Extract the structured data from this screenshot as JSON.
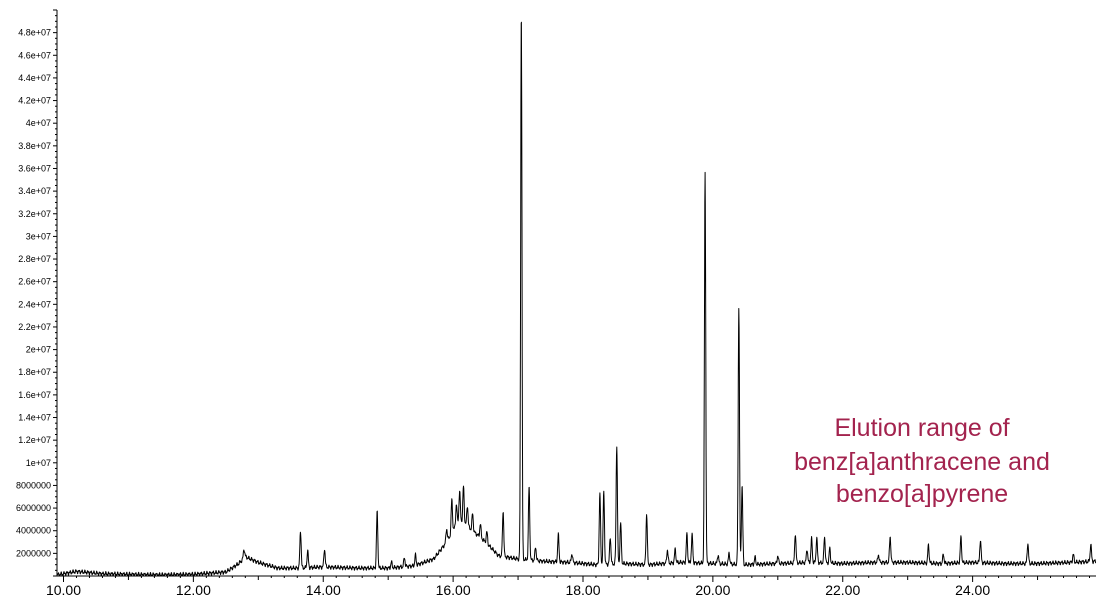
{
  "chart_data": {
    "type": "line",
    "title": "",
    "xlabel": "",
    "ylabel": "",
    "xlim": [
      9.9,
      25.9
    ],
    "ylim": [
      0,
      50000000
    ],
    "grid": false,
    "legend": "none",
    "x_ticks": [
      "10.00",
      "12.00",
      "14.00",
      "16.00",
      "18.00",
      "20.00",
      "22.00",
      "24.00"
    ],
    "y_ticks": [
      "2000000",
      "4000000",
      "6000000",
      "8000000",
      "1e+07",
      "1.2e+07",
      "1.4e+07",
      "1.6e+07",
      "1.8e+07",
      "2e+07",
      "2.2e+07",
      "2.4e+07",
      "2.6e+07",
      "2.8e+07",
      "3e+07",
      "3.2e+07",
      "3.4e+07",
      "3.6e+07",
      "3.8e+07",
      "4e+07",
      "4.2e+07",
      "4.4e+07",
      "4.6e+07",
      "4.8e+07"
    ],
    "line_color": "#000000",
    "annotation": {
      "lines": [
        "Elution range of",
        "benz[a]anthracene and",
        "benzo[a]pyrene"
      ],
      "color": "#a3234e"
    },
    "baseline_points": [
      [
        9.9,
        100000
      ],
      [
        10.2,
        400000
      ],
      [
        10.6,
        200000
      ],
      [
        11.0,
        150000
      ],
      [
        11.5,
        100000
      ],
      [
        12.0,
        150000
      ],
      [
        12.5,
        350000
      ],
      [
        12.7,
        1100000
      ],
      [
        12.8,
        1700000
      ],
      [
        13.0,
        1200000
      ],
      [
        13.3,
        700000
      ],
      [
        13.6,
        700000
      ],
      [
        14.0,
        800000
      ],
      [
        14.5,
        700000
      ],
      [
        15.0,
        700000
      ],
      [
        15.4,
        900000
      ],
      [
        15.7,
        1500000
      ],
      [
        15.9,
        3000000
      ],
      [
        16.1,
        5000000
      ],
      [
        16.3,
        4000000
      ],
      [
        16.5,
        3000000
      ],
      [
        16.7,
        1800000
      ],
      [
        17.0,
        1500000
      ],
      [
        17.4,
        1300000
      ],
      [
        17.8,
        1200000
      ],
      [
        18.2,
        1000000
      ],
      [
        18.6,
        1100000
      ],
      [
        19.0,
        1000000
      ],
      [
        19.5,
        1200000
      ],
      [
        20.0,
        1100000
      ],
      [
        20.5,
        1000000
      ],
      [
        21.0,
        1100000
      ],
      [
        21.5,
        1200000
      ],
      [
        22.0,
        1100000
      ],
      [
        22.5,
        1200000
      ],
      [
        23.0,
        1200000
      ],
      [
        23.5,
        1100000
      ],
      [
        24.0,
        1200000
      ],
      [
        24.5,
        1100000
      ],
      [
        25.0,
        1100000
      ],
      [
        25.5,
        1200000
      ],
      [
        25.9,
        1300000
      ]
    ],
    "peaks": [
      [
        12.78,
        800000
      ],
      [
        13.65,
        3300000
      ],
      [
        13.76,
        1500000
      ],
      [
        14.02,
        1600000
      ],
      [
        14.83,
        5000000
      ],
      [
        15.05,
        500000
      ],
      [
        15.25,
        800000
      ],
      [
        15.42,
        900000
      ],
      [
        15.9,
        1200000
      ],
      [
        15.98,
        3000000
      ],
      [
        16.05,
        1800000
      ],
      [
        16.1,
        2500000
      ],
      [
        16.16,
        3200000
      ],
      [
        16.22,
        1800000
      ],
      [
        16.3,
        1500000
      ],
      [
        16.42,
        1200000
      ],
      [
        16.52,
        1000000
      ],
      [
        16.77,
        4000000
      ],
      [
        17.05,
        48500000
      ],
      [
        17.17,
        6500000
      ],
      [
        17.27,
        1200000
      ],
      [
        17.62,
        2400000
      ],
      [
        17.83,
        800000
      ],
      [
        18.26,
        6300000
      ],
      [
        18.32,
        6500000
      ],
      [
        18.42,
        2400000
      ],
      [
        18.52,
        10500000
      ],
      [
        18.58,
        3600000
      ],
      [
        18.98,
        4500000
      ],
      [
        19.3,
        1200000
      ],
      [
        19.42,
        1200000
      ],
      [
        19.6,
        2500000
      ],
      [
        19.68,
        2500000
      ],
      [
        19.88,
        34500000
      ],
      [
        20.08,
        800000
      ],
      [
        20.25,
        1000000
      ],
      [
        20.4,
        22800000
      ],
      [
        20.45,
        7000000
      ],
      [
        20.65,
        600000
      ],
      [
        21.0,
        700000
      ],
      [
        21.27,
        2600000
      ],
      [
        21.45,
        1200000
      ],
      [
        21.52,
        2100000
      ],
      [
        21.6,
        2200000
      ],
      [
        21.72,
        2300000
      ],
      [
        21.8,
        1300000
      ],
      [
        22.55,
        700000
      ],
      [
        22.73,
        2300000
      ],
      [
        23.32,
        1600000
      ],
      [
        23.55,
        800000
      ],
      [
        23.82,
        2300000
      ],
      [
        24.12,
        2000000
      ],
      [
        24.85,
        1800000
      ],
      [
        25.55,
        700000
      ],
      [
        25.82,
        1500000
      ]
    ]
  }
}
